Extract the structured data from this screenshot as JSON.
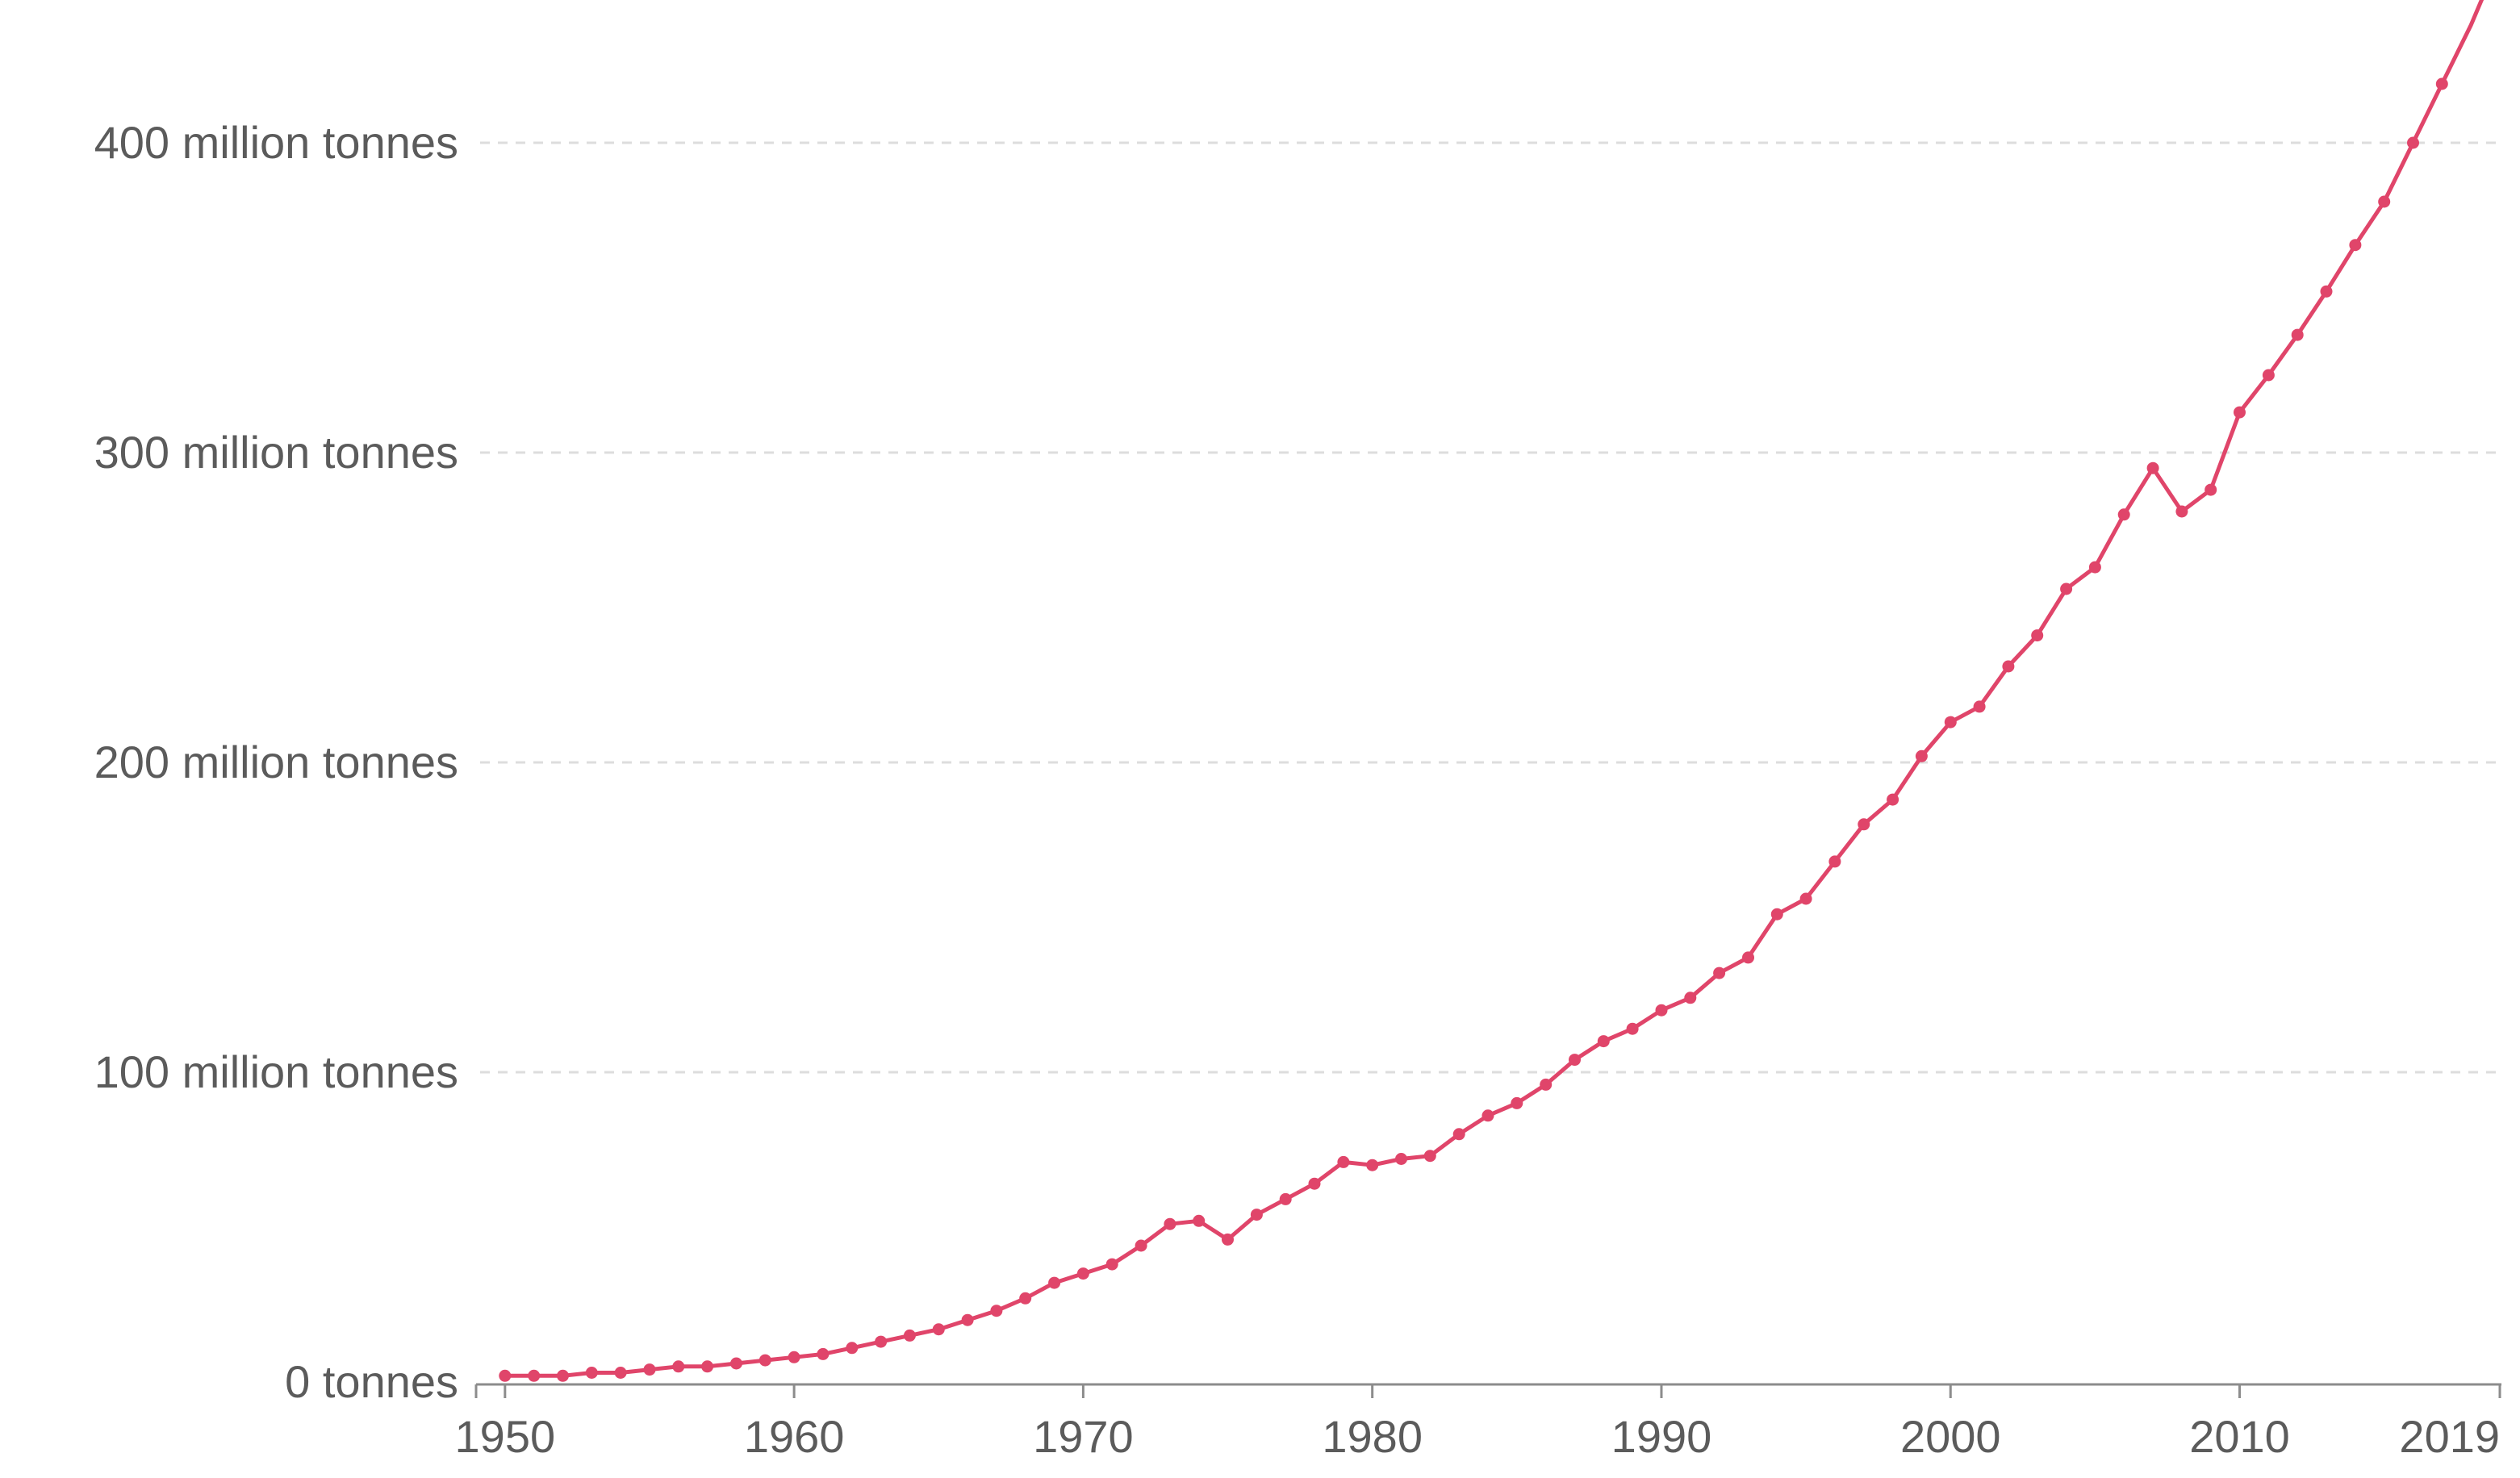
{
  "chart_data": {
    "type": "line",
    "title": "",
    "xlabel": "",
    "ylabel": "",
    "xlim": [
      1949,
      2019
    ],
    "ylim": [
      0,
      400
    ],
    "grid": true,
    "y_ticks": [
      {
        "value": 0,
        "label": "0 tonnes"
      },
      {
        "value": 100,
        "label": "100 million tonnes"
      },
      {
        "value": 200,
        "label": "200 million tonnes"
      },
      {
        "value": 300,
        "label": "300 million tonnes"
      },
      {
        "value": 400,
        "label": "400 million tonnes"
      }
    ],
    "x_ticks": [
      {
        "value": 1950,
        "label": "1950"
      },
      {
        "value": 1960,
        "label": "1960"
      },
      {
        "value": 1970,
        "label": "1970"
      },
      {
        "value": 1980,
        "label": "1980"
      },
      {
        "value": 1990,
        "label": "1990"
      },
      {
        "value": 2000,
        "label": "2000"
      },
      {
        "value": 2010,
        "label": "2010"
      },
      {
        "value": 2019,
        "label": "2019"
      }
    ],
    "colors": {
      "line": "#e0456a",
      "grid": "#dddddd",
      "axis": "#8c8c8c",
      "text": "#5b5b5b"
    },
    "series": [
      {
        "name": "",
        "x": [
          1950,
          1951,
          1952,
          1953,
          1954,
          1955,
          1956,
          1957,
          1958,
          1959,
          1960,
          1961,
          1962,
          1963,
          1964,
          1965,
          1966,
          1967,
          1968,
          1969,
          1970,
          1971,
          1972,
          1973,
          1974,
          1975,
          1976,
          1977,
          1978,
          1979,
          1980,
          1981,
          1982,
          1983,
          1984,
          1985,
          1986,
          1987,
          1988,
          1989,
          1990,
          1991,
          1992,
          1993,
          1994,
          1995,
          1996,
          1997,
          1998,
          1999,
          2000,
          2001,
          2002,
          2003,
          2004,
          2005,
          2006,
          2007,
          2008,
          2009,
          2010,
          2011,
          2012,
          2013,
          2014,
          2015,
          2016,
          2017,
          2018,
          2019
        ],
        "values": [
          2,
          2,
          2,
          3,
          3,
          4,
          5,
          5,
          6,
          7,
          8,
          9,
          11,
          13,
          15,
          17,
          20,
          23,
          27,
          32,
          35,
          38,
          44,
          51,
          52,
          46,
          54,
          59,
          64,
          71,
          70,
          72,
          73,
          80,
          86,
          90,
          96,
          104,
          110,
          114,
          120,
          124,
          132,
          137,
          151,
          156,
          168,
          180,
          188,
          202,
          213,
          218,
          231,
          241,
          256,
          263,
          280,
          295,
          281,
          288,
          313,
          325,
          338,
          352,
          367,
          381,
          400,
          419,
          438,
          460
        ]
      }
    ]
  }
}
